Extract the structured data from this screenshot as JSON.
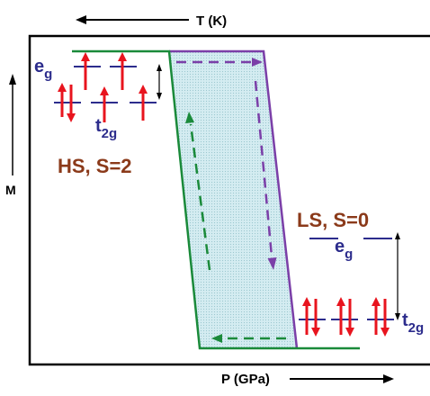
{
  "axes": {
    "top_label": "T (K)",
    "bottom_label": "P (GPa)",
    "left_label": "M"
  },
  "hs": {
    "state_label": "HS, S=2",
    "eg_main": "e",
    "eg_sub": "g",
    "t2g_main": "t",
    "t2g_sub": "2g"
  },
  "ls": {
    "state_label": "LS, S=0",
    "eg_main": "e",
    "eg_sub": "g",
    "t2g_main": "t",
    "t2g_sub": "2g"
  },
  "colors": {
    "hs_curve": "#1a8a3a",
    "ls_curve": "#7b3fa8",
    "hysteresis_fill": "#cfe9ee",
    "spin_arrow": "#e8141e",
    "level_line": "#2c2c8c",
    "state_label": "#8b3a1a",
    "level_label": "#2c2c8c"
  }
}
